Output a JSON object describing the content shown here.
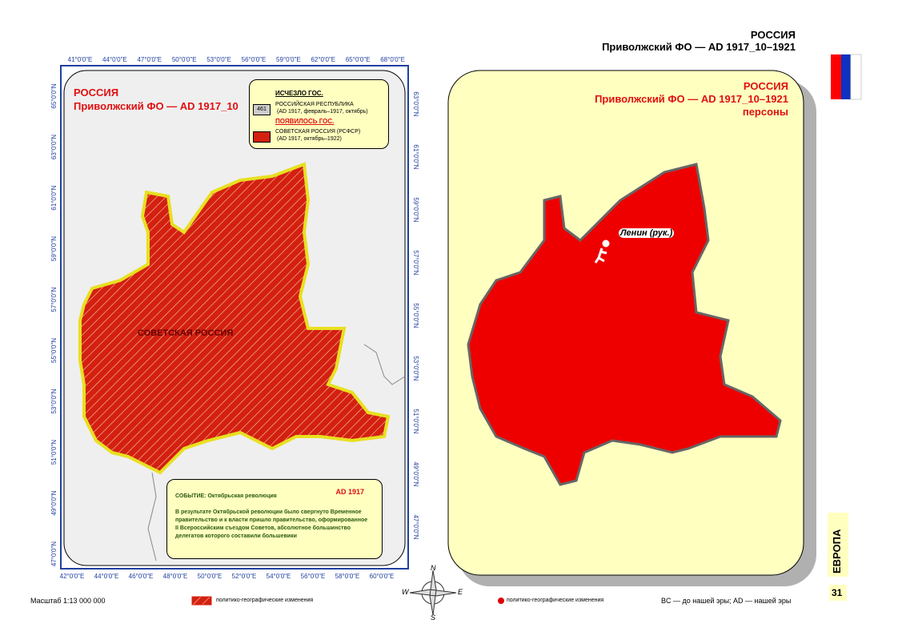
{
  "header": {
    "country": "РОССИЯ",
    "region": "Приволжский ФО — AD 1917_10–1921"
  },
  "left_map": {
    "title": "РОССИЯ",
    "subtitle": "Приволжский ФО — AD 1917_10",
    "legend": {
      "disappeared_heading": "ИСЧЕЗЛО ГОС.",
      "disappeared_code": "461",
      "disappeared_name": "РОССИЙСКАЯ РЕСПУБЛИКА",
      "disappeared_period": "(AD 1917, февраль–1917, октябрь)",
      "appeared_heading": "ПОЯВИЛОСЬ ГОС.",
      "appeared_name": "СОВЕТСКАЯ РОССИЯ (РСФСР)",
      "appeared_period": "(AD 1917, октябрь–1922)"
    },
    "region_label": "СОВЕТСКАЯ РОССИЯ",
    "top_ticks": [
      "41°0'0\"E",
      "44°0'0\"E",
      "47°0'0\"E",
      "50°0'0\"E",
      "53°0'0\"E",
      "56°0'0\"E",
      "59°0'0\"E",
      "62°0'0\"E",
      "65°0'0\"E",
      "68°0'0\"E"
    ],
    "bottom_ticks": [
      "42°0'0\"E",
      "44°0'0\"E",
      "46°0'0\"E",
      "48°0'0\"E",
      "50°0'0\"E",
      "52°0'0\"E",
      "54°0'0\"E",
      "56°0'0\"E",
      "58°0'0\"E",
      "60°0'0\"E"
    ],
    "left_ticks": [
      "65°0'0\"N",
      "63°0'0\"N",
      "61°0'0\"N",
      "59°0'0\"N",
      "57°0'0\"N",
      "55°0'0\"N",
      "53°0'0\"N",
      "51°0'0\"N",
      "49°0'0\"N",
      "47°0'0\"N"
    ],
    "right_ticks": [
      "63°0'0\"N",
      "61°0'0\"N",
      "59°0'0\"N",
      "57°0'0\"N",
      "55°0'0\"N",
      "53°0'0\"N",
      "51°0'0\"N",
      "49°0'0\"N",
      "47°0'0\"N"
    ],
    "event": {
      "year": "AD 1917",
      "label": "СОБЫТИЕ:",
      "title": "Октябрьская революция",
      "text": "В результате Октябрьской революции было свергнуто Временное правительство и к власти пришло правительство, оформированное II Всероссийским съездом Советов, абсолютное большинство делегатов которого составили большевики"
    }
  },
  "right_map": {
    "title": "РОССИЯ",
    "subtitle": "Приволжский ФО — AD 1917_10–1921",
    "subtitle2": "персоны",
    "person": "Ленин (рук.)"
  },
  "compass": {
    "n": "N",
    "w": "W",
    "e": "E",
    "s": "S"
  },
  "footer": {
    "scale": "Масштаб 1:13 000 000",
    "legend_left": "политико-географические изменения",
    "legend_right": "политико-географические изменения",
    "note": "BC — до нашей эры; AD — нашей эры",
    "section": "ЕВРОПА",
    "page": "31"
  }
}
